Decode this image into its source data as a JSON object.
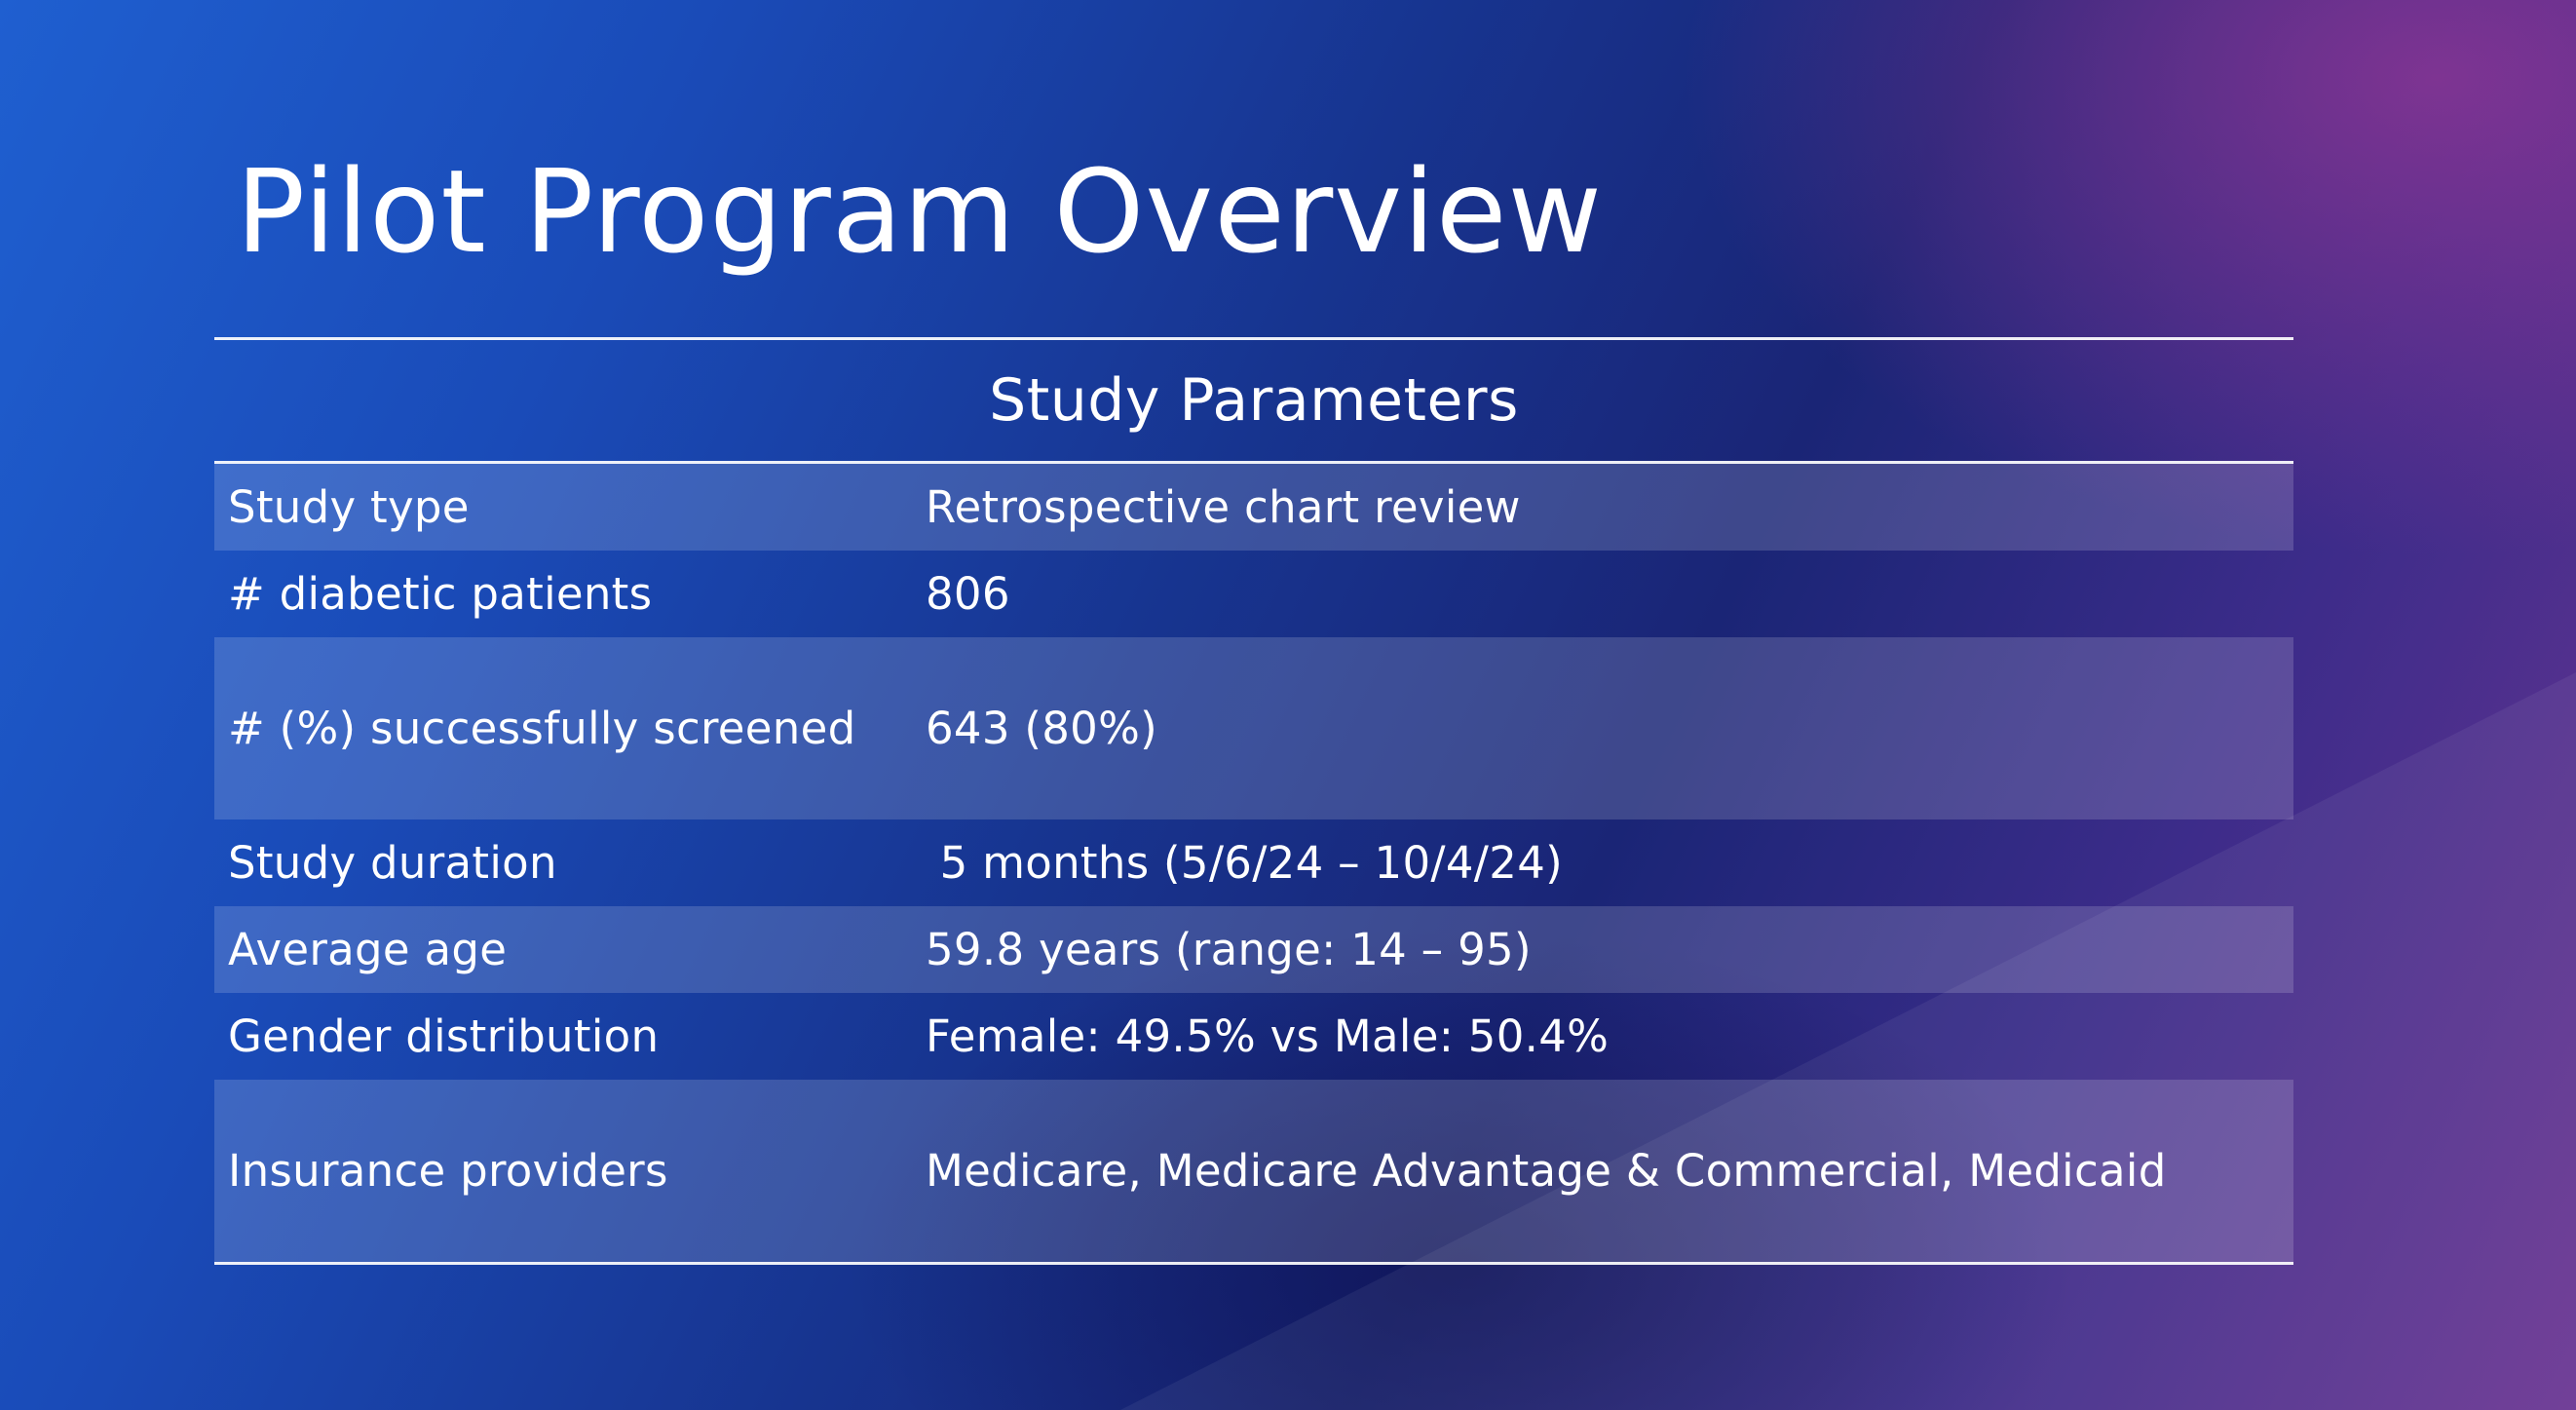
{
  "slide": {
    "title": "Pilot Program Overview",
    "colors": {
      "background_start": "#1f5fd0",
      "background_end": "#6a3592",
      "text": "#ffffff"
    }
  },
  "table": {
    "heading": "Study Parameters",
    "rows": [
      {
        "label": "Study type",
        "value": "Retrospective chart review"
      },
      {
        "label": "# diabetic patients",
        "value": "806"
      },
      {
        "label": "# (%) successfully screened",
        "value": "643 (80%)"
      },
      {
        "label": "Study duration",
        "value": " 5 months (5/6/24 – 10/4/24)"
      },
      {
        "label": "Average age",
        "value": "59.8 years (range: 14 – 95)"
      },
      {
        "label": "Gender distribution",
        "value": "Female: 49.5% vs Male: 50.4%"
      },
      {
        "label": "Insurance providers",
        "value": "Medicare, Medicare Advantage & Commercial, Medicaid"
      }
    ]
  }
}
